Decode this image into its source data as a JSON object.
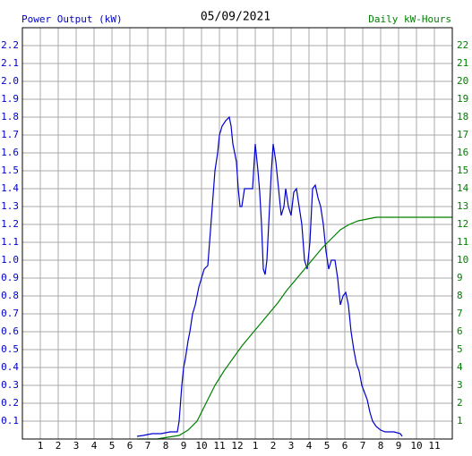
{
  "chart_data": {
    "type": "line",
    "title": "05/09/2021",
    "series": [
      {
        "name": "Power Output (kW)",
        "color": "#0000cc",
        "x": [
          6.4,
          6.75,
          7.25,
          7.75,
          8.25,
          8.65,
          8.75,
          8.9,
          9.0,
          9.1,
          9.25,
          9.35,
          9.5,
          9.65,
          9.85,
          10.0,
          10.15,
          10.35,
          10.45,
          10.6,
          10.75,
          10.9,
          11.0,
          11.15,
          11.35,
          11.55,
          11.65,
          11.75,
          11.95,
          12.05,
          12.15,
          12.25,
          12.4,
          12.65,
          12.85,
          13.0,
          13.15,
          13.25,
          13.35,
          13.45,
          13.55,
          13.65,
          13.75,
          13.9,
          14.0,
          14.15,
          14.3,
          14.45,
          14.6,
          14.7,
          14.85,
          15.0,
          15.15,
          15.3,
          15.45,
          15.6,
          15.75,
          15.9,
          16.05,
          16.2,
          16.35,
          16.5,
          16.65,
          16.8,
          16.95,
          17.1,
          17.25,
          17.45,
          17.6,
          17.75,
          17.9,
          18.05,
          18.2,
          18.35,
          18.5,
          18.65,
          18.8,
          18.95,
          19.1,
          19.25,
          19.4,
          19.55,
          19.75,
          20.0,
          20.25,
          20.75,
          21.1,
          21.2
        ],
        "values": [
          0.015,
          0.02,
          0.03,
          0.03,
          0.04,
          0.04,
          0.1,
          0.3,
          0.4,
          0.45,
          0.55,
          0.6,
          0.7,
          0.75,
          0.85,
          0.9,
          0.95,
          0.97,
          1.1,
          1.3,
          1.5,
          1.6,
          1.7,
          1.75,
          1.78,
          1.8,
          1.75,
          1.65,
          1.55,
          1.4,
          1.3,
          1.3,
          1.4,
          1.4,
          1.4,
          1.65,
          1.5,
          1.38,
          1.2,
          0.95,
          0.92,
          1.0,
          1.2,
          1.5,
          1.65,
          1.55,
          1.4,
          1.25,
          1.3,
          1.4,
          1.3,
          1.25,
          1.38,
          1.4,
          1.3,
          1.2,
          1.0,
          0.95,
          1.1,
          1.4,
          1.42,
          1.35,
          1.3,
          1.2,
          1.05,
          0.95,
          1.0,
          1.0,
          0.9,
          0.75,
          0.8,
          0.82,
          0.75,
          0.6,
          0.5,
          0.42,
          0.38,
          0.3,
          0.26,
          0.22,
          0.15,
          0.1,
          0.07,
          0.05,
          0.04,
          0.04,
          0.03,
          0.015
        ]
      },
      {
        "name": "Daily kW-Hours",
        "color": "#008000",
        "axis": "y2",
        "x": [
          6.4,
          7.5,
          8.75,
          9.25,
          9.75,
          10.25,
          10.75,
          11.25,
          11.75,
          12.25,
          12.75,
          13.25,
          13.75,
          14.25,
          14.75,
          15.25,
          15.75,
          16.25,
          16.75,
          17.25,
          17.75,
          18.25,
          18.75,
          19.25,
          19.75,
          24
        ],
        "values": [
          0,
          0,
          0.2,
          0.5,
          1,
          2,
          3,
          3.8,
          4.5,
          5.2,
          5.8,
          6.4,
          7.0,
          7.6,
          8.3,
          8.9,
          9.5,
          10.1,
          10.7,
          11.2,
          11.7,
          12.0,
          12.2,
          12.3,
          12.4,
          12.4
        ]
      }
    ],
    "xlim": [
      0,
      24
    ],
    "xticks": [
      1,
      2,
      3,
      4,
      5,
      6,
      7,
      8,
      9,
      10,
      11,
      12,
      {
        "value": 13,
        "label": "1"
      },
      {
        "value": 14,
        "label": "2"
      },
      {
        "value": 15,
        "label": "3"
      },
      {
        "value": 16,
        "label": "4"
      },
      {
        "value": 17,
        "label": "5"
      },
      {
        "value": 18,
        "label": "6"
      },
      {
        "value": 19,
        "label": "7"
      },
      {
        "value": 20,
        "label": "8"
      },
      {
        "value": 21,
        "label": "9"
      },
      {
        "value": 22,
        "label": "10"
      },
      {
        "value": 23,
        "label": "11"
      }
    ],
    "ylim": [
      0,
      2.3
    ],
    "yticks": [
      0.1,
      0.2,
      0.3,
      0.4,
      0.5,
      0.6,
      0.7,
      0.8,
      0.9,
      {
        "value": 1.0,
        "label": "1.0"
      },
      1.1,
      1.2,
      1.3,
      1.4,
      1.5,
      1.6,
      1.7,
      1.8,
      1.9,
      {
        "value": 2.0,
        "label": "2.0"
      },
      2.1,
      2.2
    ],
    "y2lim": [
      0,
      23
    ],
    "y2ticks": [
      1,
      2,
      3,
      4,
      5,
      6,
      7,
      8,
      9,
      10,
      11,
      12,
      13,
      14,
      15,
      16,
      17,
      18,
      19,
      20,
      21,
      22
    ],
    "grid": true
  }
}
